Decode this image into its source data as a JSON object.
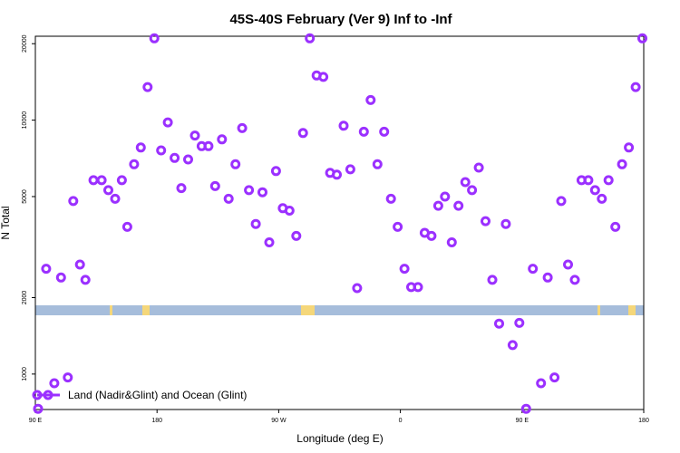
{
  "chart_data": {
    "type": "scatter",
    "title": "45S-40S February (Ver 9)   Inf to -Inf",
    "xlabel": "Longitude (deg E)",
    "ylabel": "N Total",
    "x_tick_labels": [
      "90 E",
      "180",
      "90 W",
      "0",
      "90 E",
      "180"
    ],
    "x_ticks": [
      90,
      180,
      270,
      360,
      450,
      540
    ],
    "y_tick_labels": [
      "1000",
      "2000",
      "5000",
      "10000",
      "20000"
    ],
    "y_ticks": [
      1000,
      2000,
      5000,
      10000,
      20000
    ],
    "xlim": [
      90,
      540
    ],
    "ylim": [
      700,
      25000
    ],
    "y_scale": "log",
    "grid": false,
    "legend_position": "bottom-left",
    "series": [
      {
        "name": "Land (Nadir&Glint) and Ocean (Glint)",
        "color": "#9b30ff",
        "marker": "open-circle",
        "points": [
          [
            92,
            730
          ],
          [
            98,
            2600
          ],
          [
            104,
            920
          ],
          [
            109,
            2400
          ],
          [
            114,
            970
          ],
          [
            118,
            4800
          ],
          [
            123,
            2700
          ],
          [
            127,
            2350
          ],
          [
            133,
            5800
          ],
          [
            139,
            5800
          ],
          [
            144,
            5300
          ],
          [
            149,
            4900
          ],
          [
            154,
            5800
          ],
          [
            158,
            3800
          ],
          [
            163,
            6700
          ],
          [
            168,
            7800
          ],
          [
            173,
            13500
          ],
          [
            178,
            21000
          ],
          [
            183,
            7600
          ],
          [
            188,
            9800
          ],
          [
            193,
            7100
          ],
          [
            198,
            5400
          ],
          [
            203,
            7000
          ],
          [
            208,
            8700
          ],
          [
            213,
            7900
          ],
          [
            218,
            7900
          ],
          [
            223,
            5500
          ],
          [
            228,
            8400
          ],
          [
            233,
            4900
          ],
          [
            238,
            6700
          ],
          [
            243,
            9300
          ],
          [
            248,
            5300
          ],
          [
            253,
            3900
          ],
          [
            258,
            5200
          ],
          [
            263,
            3300
          ],
          [
            268,
            6300
          ],
          [
            273,
            4500
          ],
          [
            278,
            4400
          ],
          [
            283,
            3500
          ],
          [
            288,
            8900
          ],
          [
            293,
            21000
          ],
          [
            298,
            15000
          ],
          [
            303,
            14800
          ],
          [
            308,
            6200
          ],
          [
            313,
            6100
          ],
          [
            318,
            9500
          ],
          [
            323,
            6400
          ],
          [
            328,
            2180
          ],
          [
            333,
            9000
          ],
          [
            338,
            12000
          ],
          [
            343,
            6700
          ],
          [
            348,
            9000
          ],
          [
            353,
            4900
          ],
          [
            358,
            3800
          ],
          [
            363,
            2600
          ],
          [
            368,
            2200
          ],
          [
            373,
            2200
          ],
          [
            378,
            3600
          ],
          [
            383,
            3500
          ],
          [
            388,
            4600
          ],
          [
            393,
            5000
          ],
          [
            398,
            3300
          ],
          [
            403,
            4600
          ],
          [
            408,
            5700
          ],
          [
            413,
            5300
          ],
          [
            418,
            6500
          ],
          [
            423,
            4000
          ],
          [
            428,
            2350
          ],
          [
            433,
            1580
          ],
          [
            438,
            3900
          ],
          [
            443,
            1300
          ],
          [
            448,
            1590
          ],
          [
            453,
            730
          ],
          [
            458,
            2600
          ],
          [
            464,
            920
          ],
          [
            469,
            2400
          ],
          [
            474,
            970
          ],
          [
            479,
            4800
          ],
          [
            484,
            2700
          ],
          [
            489,
            2350
          ],
          [
            494,
            5800
          ],
          [
            499,
            5800
          ],
          [
            504,
            5300
          ],
          [
            509,
            4900
          ],
          [
            514,
            5800
          ],
          [
            519,
            3800
          ],
          [
            524,
            6700
          ],
          [
            529,
            7800
          ],
          [
            534,
            13500
          ],
          [
            539,
            21000
          ]
        ]
      }
    ],
    "band": {
      "ocean_color": "#a6bddb",
      "land_color": "#f5d77a"
    }
  }
}
